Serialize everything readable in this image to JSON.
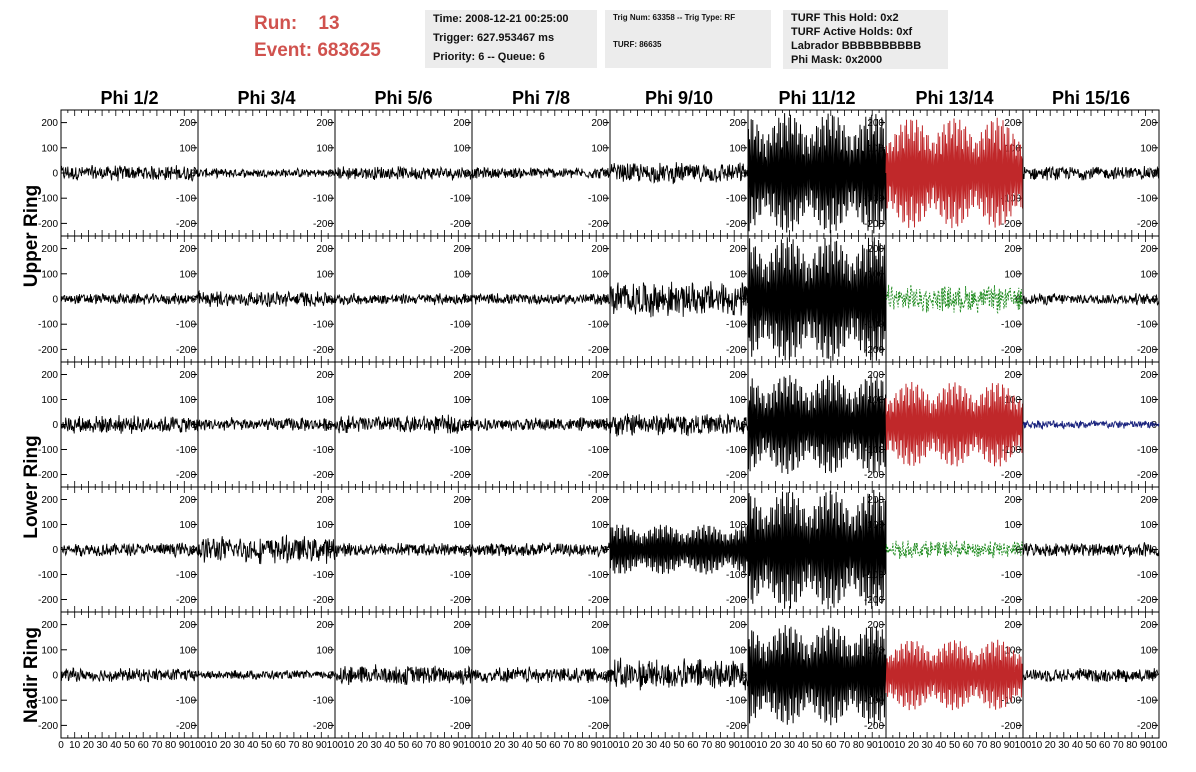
{
  "header": {
    "run_label": "Run:",
    "run_value": "13",
    "event_label": "Event:",
    "event_value": "683625",
    "time": "Time: 2008-12-21 00:25:00",
    "trigger": "Trigger: 627.953467 ms",
    "priority": "Priority: 6 -- Queue: 6",
    "trig_num": "Trig Num: 63358 -- Trig Type: RF",
    "turf": "TURF: 86635",
    "turf_this_hold": "TURF This Hold: 0x2",
    "turf_active_holds": "TURF Active Holds: 0xf",
    "labrador": "Labrador BBBBBBBBBB",
    "phi_mask": "Phi Mask: 0x2000"
  },
  "colors": {
    "red": "#c0282a",
    "green": "#1e8a1e",
    "blue": "#1a237e",
    "black": "#000000",
    "header_red": "#d0524e"
  },
  "chart_data": {
    "type": "line",
    "columns": [
      "Phi 1/2",
      "Phi 3/4",
      "Phi 5/6",
      "Phi 7/8",
      "Phi 9/10",
      "Phi 11/12",
      "Phi 13/14",
      "Phi 15/16"
    ],
    "rows": [
      "Upper Ring",
      "Lower Ring",
      "Nadir Ring"
    ],
    "ylim": [
      -250,
      250
    ],
    "yticks": [
      -200,
      -100,
      0,
      100,
      200
    ],
    "xlim": [
      0,
      100
    ],
    "xtick_labels": [
      [
        "0",
        "10",
        "20",
        "30",
        "40",
        "50",
        "60",
        "70",
        "80",
        "90",
        "100"
      ],
      [
        "10",
        "20",
        "30",
        "40",
        "50",
        "60",
        "70",
        "80",
        "90",
        "100"
      ],
      [
        "10",
        "20",
        "30",
        "40",
        "50",
        "60",
        "70",
        "80",
        "90",
        "100"
      ],
      [
        "10",
        "20",
        "30",
        "40",
        "50",
        "60",
        "70",
        "80",
        "90",
        "100"
      ],
      [
        "10",
        "20",
        "30",
        "40",
        "50",
        "60",
        "70",
        "80",
        "90",
        "100"
      ],
      [
        "10",
        "20",
        "30",
        "40",
        "50",
        "60",
        "70",
        "80",
        "90",
        "100"
      ],
      [
        "10",
        "20",
        "30",
        "40",
        "50",
        "60",
        "70",
        "80",
        "90",
        "100"
      ],
      [
        "10",
        "20",
        "30",
        "40",
        "50",
        "60",
        "70",
        "80",
        "90",
        "100"
      ]
    ],
    "amplitude_max": [
      [
        35,
        20,
        30,
        25,
        45,
        240,
        220,
        30
      ],
      [
        25,
        35,
        25,
        25,
        80,
        250,
        60,
        25
      ],
      [
        40,
        30,
        40,
        30,
        50,
        200,
        170,
        20
      ],
      [
        30,
        60,
        30,
        30,
        100,
        240,
        40,
        30
      ],
      [
        30,
        20,
        45,
        35,
        70,
        200,
        140,
        30
      ]
    ],
    "trace_color": [
      [
        "black",
        "black",
        "black",
        "black",
        "black",
        "black",
        "red",
        "black"
      ],
      [
        "black",
        "black",
        "black",
        "black",
        "black",
        "black",
        "green",
        "black"
      ],
      [
        "black",
        "black",
        "black",
        "black",
        "black",
        "black",
        "red",
        "blue"
      ],
      [
        "black",
        "black",
        "black",
        "black",
        "black",
        "black",
        "green",
        "black"
      ],
      [
        "black",
        "black",
        "black",
        "black",
        "black",
        "black",
        "red",
        "black"
      ]
    ]
  }
}
